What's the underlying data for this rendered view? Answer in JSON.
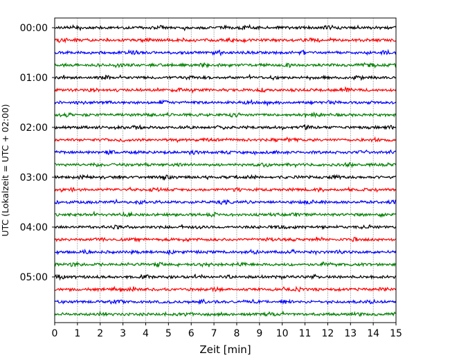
{
  "chart_data": {
    "type": "line",
    "xlabel": "Zeit  [min]",
    "ylabel": "UTC (Lokalzeit = UTC + 02:00)",
    "xlim": [
      0,
      15
    ],
    "x_ticks": [
      0,
      1,
      2,
      3,
      4,
      5,
      6,
      7,
      8,
      9,
      10,
      11,
      12,
      13,
      14,
      15
    ],
    "x_tick_labels": [
      "0",
      "1",
      "2",
      "3",
      "4",
      "5",
      "6",
      "7",
      "8",
      "9",
      "10",
      "11",
      "12",
      "13",
      "14",
      "15"
    ],
    "y_tick_labels": [
      "00:00",
      "01:00",
      "02:00",
      "03:00",
      "04:00",
      "05:00"
    ],
    "grid": {
      "x": "dotted vertical at each minute",
      "y": "none"
    },
    "trace_interval_minutes": 15,
    "trace_colors": [
      "#000000",
      "#ff0000",
      "#0000ff",
      "#008000"
    ],
    "traces_start_utc": [
      "00:00",
      "00:15",
      "00:30",
      "00:45",
      "01:00",
      "01:15",
      "01:30",
      "01:45",
      "02:00",
      "02:15",
      "02:30",
      "02:45",
      "03:00",
      "03:15",
      "03:30",
      "03:45",
      "04:00",
      "04:15",
      "04:30",
      "04:45",
      "05:00",
      "05:15",
      "05:30",
      "05:45"
    ]
  }
}
